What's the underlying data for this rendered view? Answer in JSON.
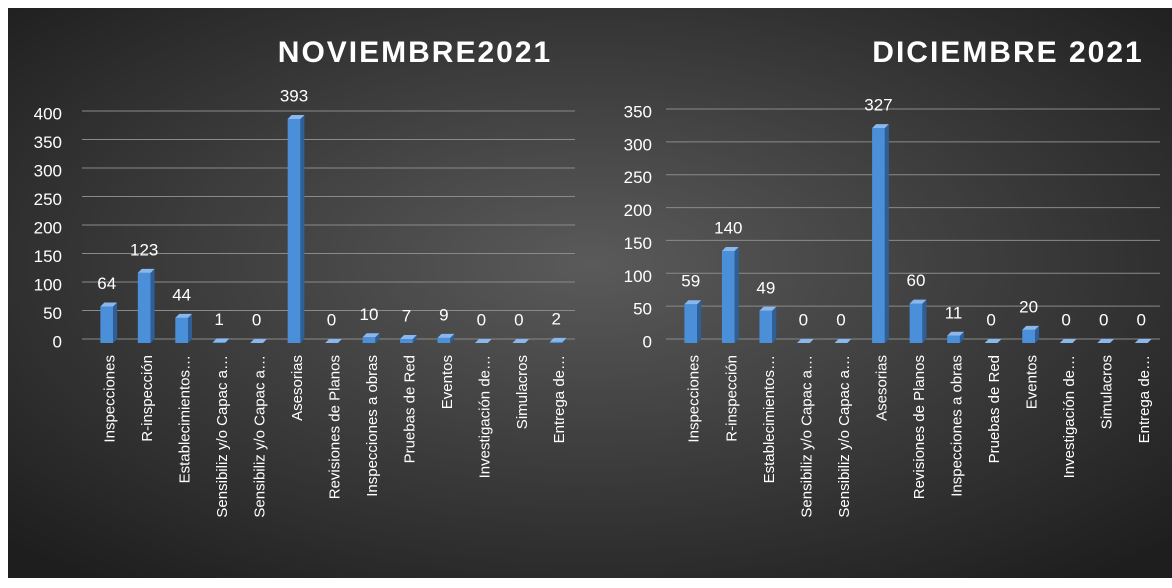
{
  "chart_data": [
    {
      "type": "bar",
      "title": "NOVIEMBRE2021",
      "categories": [
        "Inspecciones",
        "R-inspección",
        "Establecimientos…",
        "Sensibiliz y/o Capac a…",
        "Sensibiliz y/o Capac a…",
        "Asesorias",
        "Revisiones de Planos",
        "Inspecciones a obras",
        "Pruebas de Red",
        "Eventos",
        "Investigación de…",
        "Simulacros",
        "Entrega de…"
      ],
      "values": [
        64,
        123,
        44,
        1,
        0,
        393,
        0,
        10,
        7,
        9,
        0,
        0,
        2
      ],
      "color": "#4a8fd8",
      "ylim": [
        0,
        400
      ],
      "yticks": [
        0,
        50,
        100,
        150,
        200,
        250,
        300,
        350,
        400
      ],
      "grid": true
    },
    {
      "type": "bar",
      "title": "DICIEMBRE 2021",
      "categories": [
        "Inspecciones",
        "R-inspección",
        "Establecimientos…",
        "Sensibiliz y/o Capac a…",
        "Sensibiliz y/o Capac a…",
        "Asesorias",
        "Revisiones de Planos",
        "Inspecciones a obras",
        "Pruebas de Red",
        "Eventos",
        "Investigación de…",
        "Simulacros",
        "Entrega de…"
      ],
      "values": [
        59,
        140,
        49,
        0,
        0,
        327,
        60,
        11,
        0,
        20,
        0,
        0,
        0
      ],
      "color": "#4a8fd8",
      "ylim": [
        0,
        350
      ],
      "yticks": [
        0,
        50,
        100,
        150,
        200,
        250,
        300,
        350
      ],
      "grid": true
    }
  ]
}
